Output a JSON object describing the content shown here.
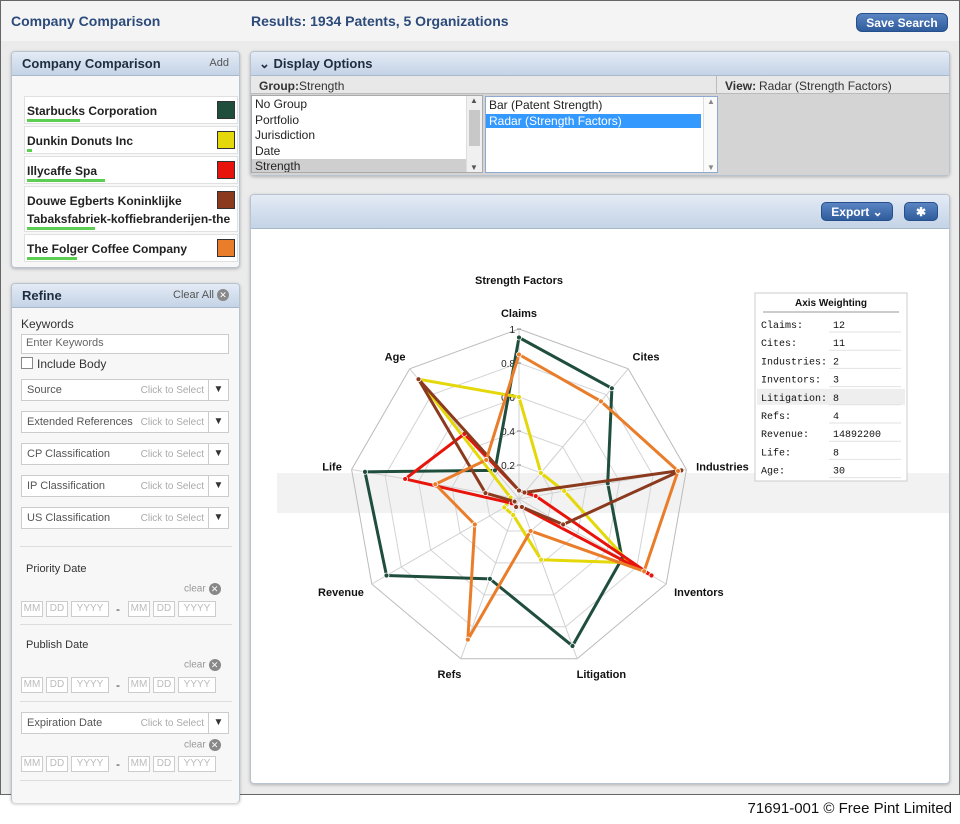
{
  "header": {
    "app_title": "Company Comparison",
    "results": "Results: 1934 Patents, 5 Organizations",
    "save_label": "Save Search"
  },
  "companies_panel": {
    "title": "Company Comparison",
    "add_label": "Add",
    "items": [
      {
        "name": "Starbucks Corporation",
        "color": "#1f4e3d",
        "strength": 0.21
      },
      {
        "name": "Dunkin Donuts Inc",
        "color": "#e4d80a",
        "strength": 0.02
      },
      {
        "name": "Illycaffe Spa",
        "color": "#e8140c",
        "strength": 0.31
      },
      {
        "name": "Douwe Egberts Koninklijke",
        "name2": "Tabaksfabriek-koffiebranderijen-the",
        "color": "#8b3a1e",
        "strength": 0.27
      },
      {
        "name": "The Folger Coffee Company",
        "color": "#e97d2a",
        "strength": 0.2
      }
    ]
  },
  "refine": {
    "title": "Refine",
    "clear_all": "Clear All",
    "keywords_label": "Keywords",
    "keywords_placeholder": "Enter Keywords",
    "include_body": "Include Body",
    "select_hint": "Click to Select",
    "filters": [
      "Source",
      "Extended References",
      "CP Classification",
      "IP Classification",
      "US Classification"
    ],
    "priority_label": "Priority Date",
    "publish_label": "Publish Date",
    "expiration_label": "Expiration Date",
    "clear_label": "clear",
    "mm": "MM",
    "dd": "DD",
    "yyyy": "YYYY",
    "dash": "-"
  },
  "display_options": {
    "title": "Display Options",
    "group_label": "Group:",
    "group_value": "Strength",
    "view_label": "View:",
    "view_value": "Radar (Strength Factors)",
    "group_options": [
      "No Group",
      "Portfolio",
      "Jurisdiction",
      "Date",
      "Strength"
    ],
    "view_options": [
      "Bar (Patent Strength)",
      "Radar (Strength Factors)"
    ]
  },
  "toolbar": {
    "export_label": "Export",
    "settings_icon": "gear-icon"
  },
  "chart_data": {
    "type": "radar",
    "title": "Strength Factors",
    "axes": [
      "Claims",
      "Cites",
      "Industries",
      "Inventors",
      "Litigation",
      "Refs",
      "Revenue",
      "Life",
      "Age"
    ],
    "ticks": [
      "1",
      "0.8",
      "0.6",
      "0.4",
      "0.2"
    ],
    "range": [
      0,
      1
    ],
    "series": [
      {
        "color": "#1f4e3d",
        "values": [
          0.95,
          0.85,
          0.53,
          0.7,
          0.92,
          0.5,
          0.9,
          0.92,
          0.22
        ]
      },
      {
        "color": "#e4d80a",
        "values": [
          0.6,
          0.2,
          0.27,
          0.75,
          0.38,
          0.1,
          0.1,
          0.05,
          0.92
        ]
      },
      {
        "color": "#e8140c",
        "values": [
          0.05,
          0.05,
          0.1,
          0.9,
          0.05,
          0.05,
          0.05,
          0.68,
          0.5
        ]
      },
      {
        "color": "#8b3a1e",
        "values": [
          0.05,
          0.05,
          0.97,
          0.3,
          0.05,
          0.05,
          0.03,
          0.2,
          0.92
        ]
      },
      {
        "color": "#e97d2a",
        "values": [
          0.85,
          0.75,
          0.95,
          0.85,
          0.2,
          0.88,
          0.3,
          0.5,
          0.3
        ]
      }
    ],
    "legend": {
      "title": "Axis Weighting",
      "rows": [
        {
          "label": "Claims:",
          "value": "12"
        },
        {
          "label": "Cites:",
          "value": "11"
        },
        {
          "label": "Industries:",
          "value": "2"
        },
        {
          "label": "Inventors:",
          "value": "3"
        },
        {
          "label": "Litigation:",
          "value": "8"
        },
        {
          "label": "Refs:",
          "value": "4"
        },
        {
          "label": "Revenue:",
          "value": "14892200"
        },
        {
          "label": "Life:",
          "value": "8"
        },
        {
          "label": "Age:",
          "value": "30"
        }
      ]
    }
  },
  "footer": {
    "credit": "71691-001 © Free Pint Limited"
  }
}
